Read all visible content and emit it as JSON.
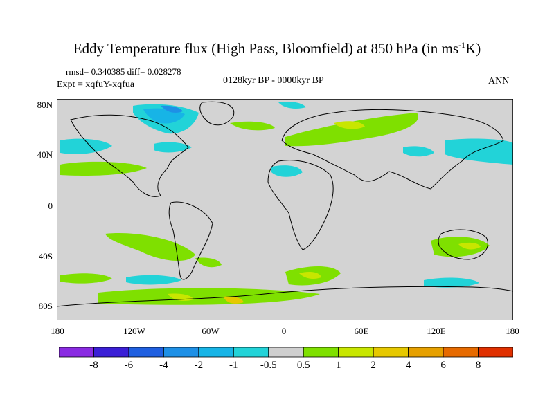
{
  "title": {
    "main": "Eddy Temperature flux (High Pass, Bloomfield) at 850 hPa (in ms",
    "sup": "-1",
    "tail": "K)"
  },
  "stats": "rmsd= 0.340385 diff= 0.028278",
  "expt": "Expt = xqfuY-xqfua",
  "period": "0128kyr BP - 0000kyr BP",
  "season": "ANN",
  "lat_labels": [
    "80N",
    "40N",
    "0",
    "40S",
    "80S"
  ],
  "lon_labels": [
    "180",
    "120W",
    "60W",
    "0",
    "60E",
    "120E",
    "180"
  ],
  "colorbar": {
    "colors": [
      "#8a2be2",
      "#3b1fd6",
      "#1f5fe0",
      "#1e90e6",
      "#17b4e6",
      "#22d3d8",
      "#cfcfcf",
      "#7fe000",
      "#c8e600",
      "#e6c800",
      "#e6a000",
      "#e66a00",
      "#e03000"
    ],
    "labels": [
      "-8",
      "-6",
      "-4",
      "-2",
      "-1",
      "-0.5",
      "0.5",
      "1",
      "2",
      "4",
      "6",
      "8"
    ]
  },
  "colors": {
    "ocean_background": "#d3d3d3",
    "coastline": "#000000"
  }
}
